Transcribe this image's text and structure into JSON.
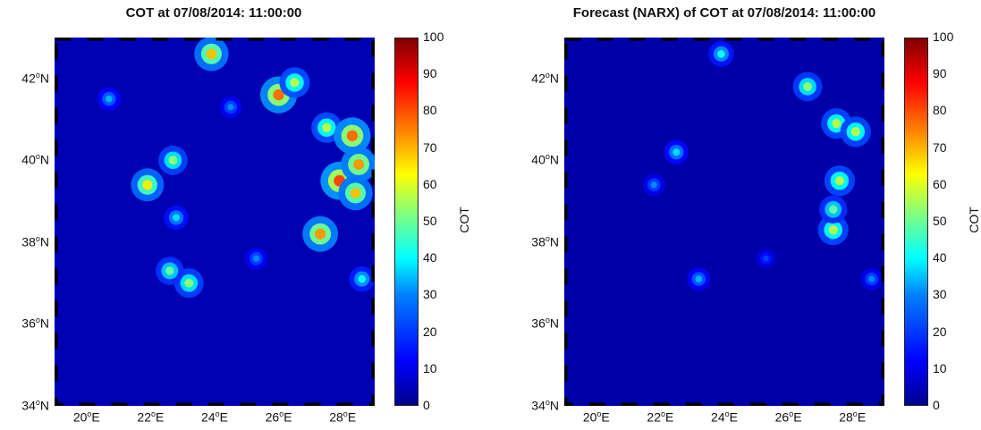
{
  "chart_data": [
    {
      "type": "heatmap",
      "title": "COT at 07/08/2014: 11:00:00",
      "lon_range": [
        19,
        29
      ],
      "lat_range": [
        34,
        43
      ],
      "x_ticks": [
        "20",
        "22",
        "24",
        "26",
        "28"
      ],
      "y_ticks": [
        "34",
        "36",
        "38",
        "40",
        "42"
      ],
      "x_unit": "E",
      "y_unit": "N",
      "colorbar": {
        "label": "COT",
        "range": [
          0,
          100
        ],
        "ticks": [
          "0",
          "10",
          "20",
          "30",
          "40",
          "50",
          "60",
          "70",
          "80",
          "90",
          "100"
        ]
      },
      "background_value": 5,
      "blobs": [
        {
          "lon": 27.5,
          "lat": 40.8,
          "value": 65
        },
        {
          "lon": 27.9,
          "lat": 39.5,
          "value": 95
        },
        {
          "lon": 27.3,
          "lat": 38.2,
          "value": 85
        },
        {
          "lon": 26.0,
          "lat": 41.6,
          "value": 90
        },
        {
          "lon": 26.5,
          "lat": 41.9,
          "value": 65
        },
        {
          "lon": 28.3,
          "lat": 40.6,
          "value": 90
        },
        {
          "lon": 28.5,
          "lat": 39.9,
          "value": 85
        },
        {
          "lon": 23.9,
          "lat": 42.6,
          "value": 80
        },
        {
          "lon": 21.9,
          "lat": 39.4,
          "value": 75
        },
        {
          "lon": 22.7,
          "lat": 40.0,
          "value": 60
        },
        {
          "lon": 23.2,
          "lat": 37.0,
          "value": 60
        },
        {
          "lon": 22.6,
          "lat": 37.3,
          "value": 55
        },
        {
          "lon": 22.8,
          "lat": 38.6,
          "value": 40
        },
        {
          "lon": 20.7,
          "lat": 41.5,
          "value": 35
        },
        {
          "lon": 24.5,
          "lat": 41.3,
          "value": 30
        },
        {
          "lon": 28.6,
          "lat": 37.1,
          "value": 45
        },
        {
          "lon": 25.3,
          "lat": 37.6,
          "value": 30
        },
        {
          "lon": 28.4,
          "lat": 39.2,
          "value": 80
        }
      ]
    },
    {
      "type": "heatmap",
      "title": "Forecast (NARX) of COT at 07/08/2014: 11:00:00",
      "lon_range": [
        19,
        29
      ],
      "lat_range": [
        34,
        43
      ],
      "x_ticks": [
        "20",
        "22",
        "24",
        "26",
        "28"
      ],
      "y_ticks": [
        "34",
        "36",
        "38",
        "40",
        "42"
      ],
      "x_unit": "E",
      "y_unit": "N",
      "colorbar": {
        "label": "COT",
        "range": [
          0,
          100
        ],
        "ticks": [
          "0",
          "10",
          "20",
          "30",
          "40",
          "50",
          "60",
          "70",
          "80",
          "90",
          "100"
        ]
      },
      "background_value": 4,
      "blobs": [
        {
          "lon": 27.5,
          "lat": 40.9,
          "value": 65
        },
        {
          "lon": 27.6,
          "lat": 39.5,
          "value": 65
        },
        {
          "lon": 27.4,
          "lat": 38.3,
          "value": 65
        },
        {
          "lon": 27.4,
          "lat": 38.8,
          "value": 55
        },
        {
          "lon": 26.6,
          "lat": 41.8,
          "value": 60
        },
        {
          "lon": 28.1,
          "lat": 40.7,
          "value": 65
        },
        {
          "lon": 23.9,
          "lat": 42.6,
          "value": 45
        },
        {
          "lon": 22.5,
          "lat": 40.2,
          "value": 40
        },
        {
          "lon": 23.2,
          "lat": 37.1,
          "value": 35
        },
        {
          "lon": 21.8,
          "lat": 39.4,
          "value": 30
        },
        {
          "lon": 28.6,
          "lat": 37.1,
          "value": 30
        },
        {
          "lon": 25.3,
          "lat": 37.6,
          "value": 22
        }
      ]
    }
  ]
}
